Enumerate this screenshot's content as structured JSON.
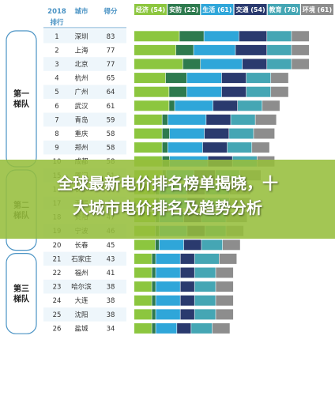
{
  "banner": {
    "title_line1": "全球最新电价排名榜单揭晓，十",
    "title_line2": "大城市电价排名及趋势分析"
  },
  "chart_data": {
    "type": "bar",
    "stacked": true,
    "columns": {
      "year": "2018",
      "rank_label": "排行",
      "city_label": "城市",
      "score_label": "得分"
    },
    "series": [
      {
        "name": "经济 (54)",
        "color": "#8cc63f"
      },
      {
        "name": "安防 (22)",
        "color": "#2e7a4e"
      },
      {
        "name": "生活 (61)",
        "color": "#2fa6d9"
      },
      {
        "name": "交通 (54)",
        "color": "#2a3a6e"
      },
      {
        "name": "教育 (78)",
        "color": "#45a6b4"
      },
      {
        "name": "环境 (61)",
        "color": "#8d8d8d"
      }
    ],
    "tiers": [
      {
        "label": "第一\n梯队",
        "from_rank": 1,
        "to_rank": 10
      },
      {
        "label": "第二\n梯队",
        "from_rank": 15,
        "to_rank": 20
      },
      {
        "label": "第三\n梯队",
        "from_rank": 21,
        "to_rank": 26
      }
    ],
    "rows": [
      {
        "rank": "1",
        "city": "深圳",
        "score": "83",
        "values": [
          26,
          14,
          20,
          16,
          14,
          10
        ]
      },
      {
        "rank": "2",
        "city": "上海",
        "score": "77",
        "values": [
          24,
          10,
          24,
          18,
          14,
          10
        ]
      },
      {
        "rank": "3",
        "city": "北京",
        "score": "77",
        "values": [
          28,
          10,
          24,
          14,
          14,
          10
        ]
      },
      {
        "rank": "4",
        "city": "杭州",
        "score": "65",
        "values": [
          18,
          12,
          20,
          14,
          14,
          10
        ]
      },
      {
        "rank": "5",
        "city": "广州",
        "score": "64",
        "values": [
          20,
          10,
          20,
          14,
          14,
          10
        ]
      },
      {
        "rank": "6",
        "city": "武汉",
        "score": "61",
        "values": [
          20,
          3,
          22,
          14,
          14,
          10
        ]
      },
      {
        "rank": "7",
        "city": "青岛",
        "score": "59",
        "values": [
          16,
          3,
          22,
          14,
          14,
          12
        ]
      },
      {
        "rank": "8",
        "city": "重庆",
        "score": "58",
        "values": [
          16,
          4,
          20,
          14,
          14,
          12
        ]
      },
      {
        "rank": "9",
        "city": "郑州",
        "score": "58",
        "values": [
          16,
          3,
          20,
          14,
          14,
          10
        ]
      },
      {
        "rank": "10",
        "city": "成都",
        "score": "58",
        "values": [
          16,
          4,
          22,
          14,
          14,
          10
        ]
      },
      {
        "rank": "15",
        "city": "厦门",
        "score": "51",
        "values": [
          16,
          2,
          16,
          12,
          14,
          12
        ]
      },
      {
        "rank": "16",
        "city": "长沙",
        "score": "51",
        "values": [
          12,
          2,
          16,
          10,
          14,
          12
        ]
      },
      {
        "rank": "17",
        "city": "无锡",
        "score": "47",
        "values": [
          12,
          2,
          16,
          10,
          14,
          12
        ]
      },
      {
        "rank": "18",
        "city": "贵阳",
        "score": "47",
        "values": [
          12,
          2,
          14,
          10,
          14,
          12
        ]
      },
      {
        "rank": "19",
        "city": "宁波",
        "score": "46",
        "values": [
          12,
          2,
          16,
          10,
          12,
          10
        ]
      },
      {
        "rank": "20",
        "city": "长春",
        "score": "45",
        "values": [
          12,
          2,
          14,
          10,
          12,
          10
        ]
      },
      {
        "rank": "21",
        "city": "石家庄",
        "score": "43",
        "values": [
          10,
          2,
          14,
          8,
          14,
          10
        ]
      },
      {
        "rank": "22",
        "city": "福州",
        "score": "41",
        "values": [
          10,
          2,
          14,
          8,
          12,
          10
        ]
      },
      {
        "rank": "23",
        "city": "哈尔滨",
        "score": "38",
        "values": [
          10,
          2,
          14,
          8,
          12,
          10
        ]
      },
      {
        "rank": "24",
        "city": "大连",
        "score": "38",
        "values": [
          10,
          2,
          14,
          8,
          12,
          10
        ]
      },
      {
        "rank": "25",
        "city": "沈阳",
        "score": "38",
        "values": [
          10,
          2,
          14,
          8,
          12,
          10
        ]
      },
      {
        "rank": "26",
        "city": "盐城",
        "score": "34",
        "values": [
          10,
          2,
          12,
          8,
          12,
          10
        ]
      }
    ]
  }
}
